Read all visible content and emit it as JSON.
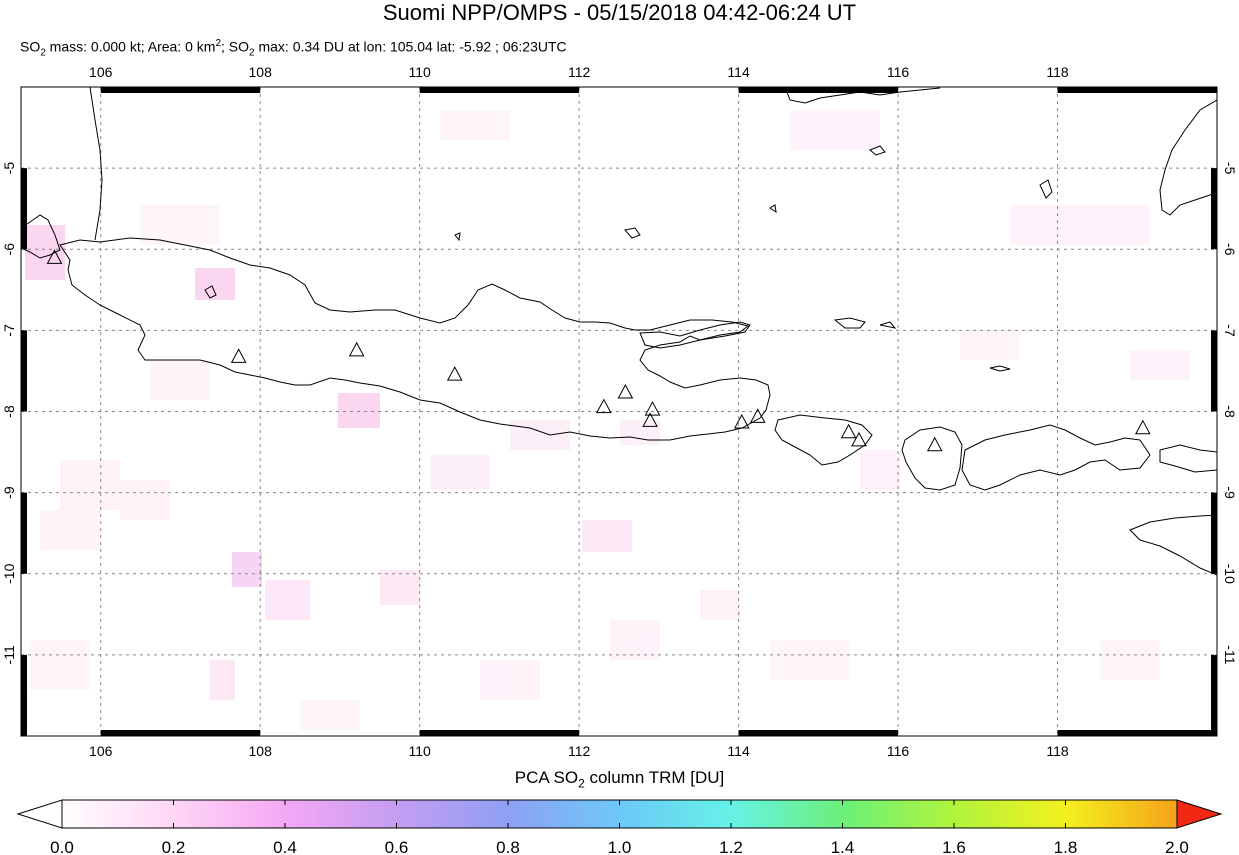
{
  "header": {
    "title": "Suomi NPP/OMPS - 05/15/2018 04:42-06:24 UT",
    "subtitle": {
      "part1": "SO",
      "part1_sub": "2",
      "part2": " mass: 0.000 kt; Area: 0 km",
      "part2_sup": "2",
      "part3": "; SO",
      "part3_sub": "2",
      "part4": " max: 0.34 DU at lon: 105.04 lat: -5.92 ; 06:23UTC"
    }
  },
  "map": {
    "lon_range": [
      105.0,
      120.0
    ],
    "lat_range": [
      -12.0,
      -4.0
    ],
    "lon_ticks": [
      "106",
      "108",
      "110",
      "112",
      "114",
      "116",
      "118"
    ],
    "lat_ticks": [
      "-5",
      "-6",
      "-7",
      "-8",
      "-9",
      "-10",
      "-11"
    ],
    "grid": true,
    "coastline_color": "#000000",
    "volcanoes": [
      {
        "lon": 105.42,
        "lat": -6.1
      },
      {
        "lon": 107.73,
        "lat": -7.32
      },
      {
        "lon": 109.21,
        "lat": -7.24
      },
      {
        "lon": 110.44,
        "lat": -7.54
      },
      {
        "lon": 112.31,
        "lat": -7.94
      },
      {
        "lon": 112.58,
        "lat": -7.76
      },
      {
        "lon": 112.92,
        "lat": -7.97
      },
      {
        "lon": 112.89,
        "lat": -8.11
      },
      {
        "lon": 114.04,
        "lat": -8.13
      },
      {
        "lon": 114.24,
        "lat": -8.06
      },
      {
        "lon": 115.38,
        "lat": -8.25
      },
      {
        "lon": 115.51,
        "lat": -8.35
      },
      {
        "lon": 116.46,
        "lat": -8.41
      },
      {
        "lon": 119.07,
        "lat": -8.2
      }
    ]
  },
  "colorbar": {
    "title_pre": "PCA SO",
    "title_sub": "2",
    "title_post": " column TRM [DU]",
    "tick_labels": [
      "0.0",
      "0.2",
      "0.4",
      "0.6",
      "0.8",
      "1.0",
      "1.2",
      "1.4",
      "1.6",
      "1.8",
      "2.0"
    ],
    "colors": [
      "#ffffff",
      "#ffd6f5",
      "#f4a8f4",
      "#c49ef2",
      "#8fa0f4",
      "#6cc8f8",
      "#66f2e6",
      "#6cf07a",
      "#b0f43c",
      "#f4f01e",
      "#f6a21a",
      "#f02814"
    ]
  }
}
